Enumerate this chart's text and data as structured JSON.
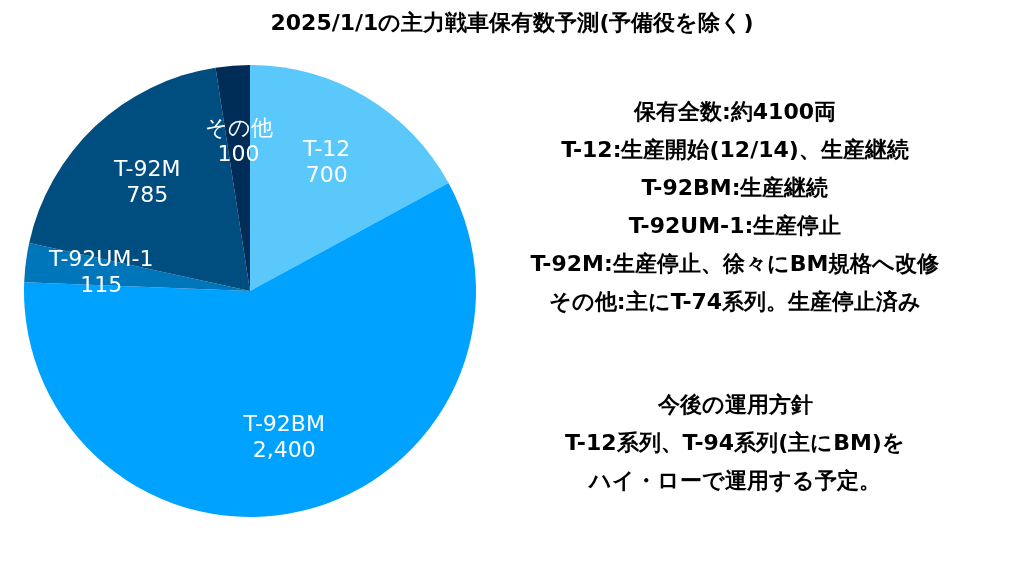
{
  "chart_data": {
    "type": "pie",
    "title": "2025/1/1の主力戦車保有数予測(予備役を除く)",
    "categories": [
      "T-12",
      "T-92BM",
      "T-92UM-1",
      "T-92M",
      "その他"
    ],
    "values": [
      700,
      2400,
      115,
      785,
      100
    ],
    "value_labels": [
      "700",
      "2,400",
      "115",
      "785",
      "100"
    ],
    "colors": [
      "#5ac8fa",
      "#00a2ff",
      "#0076ba",
      "#004d80",
      "#002d57"
    ],
    "annotations": [
      "保有全数:約4100両",
      "T-12:生産開始(12/14)、生産継続",
      "T-92BM:生産継続",
      "T-92UM-1:生産停止",
      "T-92M:生産停止、徐々にBM規格へ改修",
      "その他:主にT-74系列。生産停止済み",
      "今後の運用方針",
      "T-12系列、T-94系列(主にBM)を",
      "ハイ・ローで運用する予定。"
    ]
  }
}
